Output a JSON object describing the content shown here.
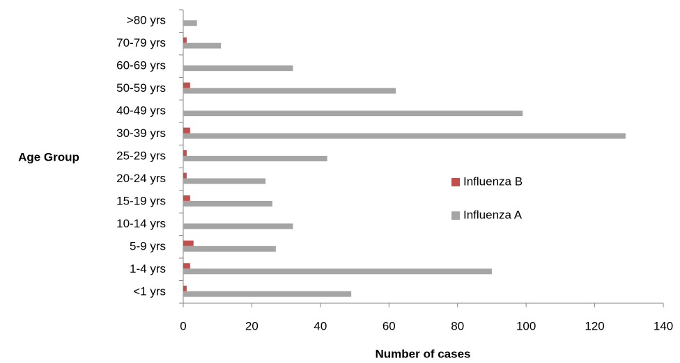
{
  "chart_data": {
    "type": "barh",
    "y_label": "Age Group",
    "x_label": "Number of cases",
    "categories": [
      "<1 yrs",
      "1-4 yrs",
      "5-9 yrs",
      "10-14 yrs",
      "15-19 yrs",
      "20-24 yrs",
      "25-29 yrs",
      "30-39 yrs",
      "40-49 yrs",
      "50-59 yrs",
      "60-69 yrs",
      "70-79 yrs",
      ">80 yrs"
    ],
    "series": [
      {
        "name": "Influenza B",
        "color": "#c0504d",
        "values": [
          1,
          2,
          3,
          0,
          2,
          1,
          1,
          2,
          0,
          2,
          0,
          1,
          0
        ]
      },
      {
        "name": "Influenza A",
        "color": "#a5a5a5",
        "values": [
          49,
          90,
          27,
          32,
          26,
          24,
          42,
          129,
          99,
          62,
          32,
          11,
          4
        ]
      }
    ],
    "xlim": [
      0,
      140
    ],
    "xticks": [
      0,
      20,
      40,
      60,
      80,
      100,
      120,
      140
    ],
    "grid": false,
    "legend": "right"
  }
}
